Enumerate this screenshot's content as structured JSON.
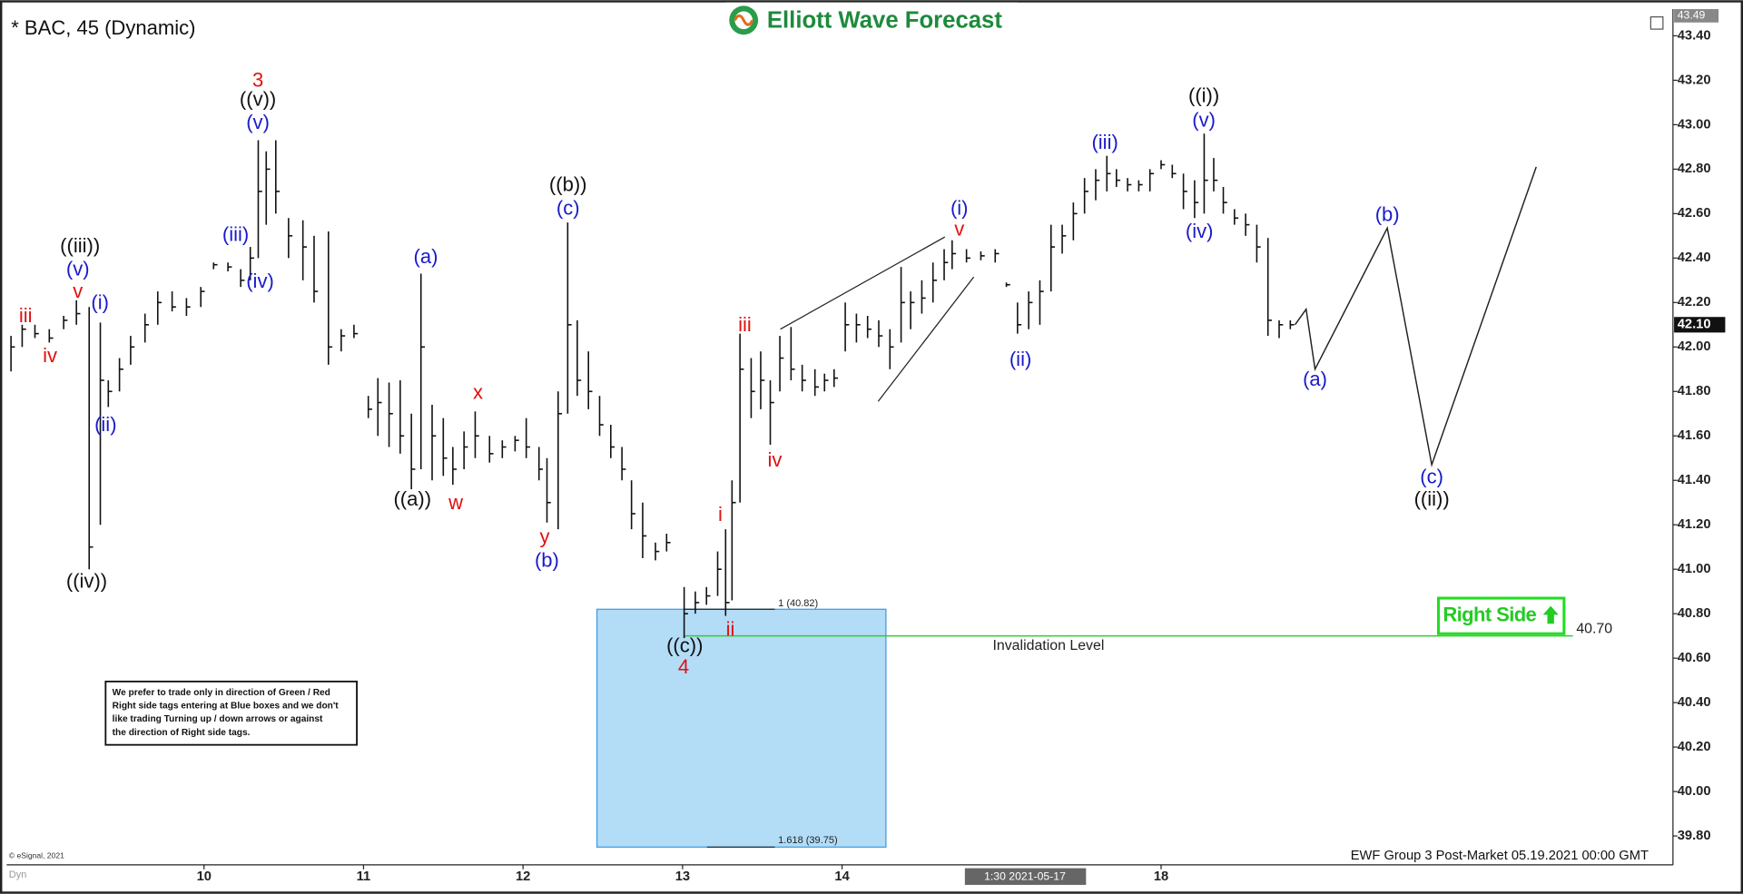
{
  "chart_data": {
    "type": "ohlc",
    "title": "* BAC, 45 (Dynamic)",
    "logo": "Elliott Wave Forecast",
    "footer": "EWF Group 3 Post-Market 05.19.2021 00:00 GMT",
    "source": "© eSignal, 2021",
    "mode_label": "Dyn",
    "cursor_label": "1:30 2021-05-17",
    "disclaimer": [
      "We prefer to trade only in direction of Green / Red",
      "Right side tags entering at Blue boxes and we don't",
      "like trading Turning up / down arrows or against",
      "the direction of Right side tags."
    ],
    "right_side_tag": "Right Side",
    "color": "#111111",
    "ylim": [
      39.685,
      43.52
    ],
    "yticks": [
      {
        "value": 39.8,
        "label": "39.80"
      },
      {
        "value": 40,
        "label": "40.00"
      },
      {
        "value": 40.2,
        "label": "40.20"
      },
      {
        "value": 40.4,
        "label": "40.40"
      },
      {
        "value": 40.6,
        "label": "40.60"
      },
      {
        "value": 40.8,
        "label": "40.80"
      },
      {
        "value": 41,
        "label": "41.00"
      },
      {
        "value": 41.2,
        "label": "41.20"
      },
      {
        "value": 41.4,
        "label": "41.40"
      },
      {
        "value": 41.6,
        "label": "41.60"
      },
      {
        "value": 41.8,
        "label": "41.80"
      },
      {
        "value": 42,
        "label": "42.00"
      },
      {
        "value": 42.2,
        "label": "42.20"
      },
      {
        "value": 42.4,
        "label": "42.40"
      },
      {
        "value": 42.6,
        "label": "42.60"
      },
      {
        "value": 42.8,
        "label": "42.80"
      },
      {
        "value": 43,
        "label": "43.00"
      },
      {
        "value": 43.2,
        "label": "43.20"
      },
      {
        "value": 43.4,
        "label": "43.40"
      }
    ],
    "xlim": [
      -0.279,
      10.209
    ],
    "xticks": [
      {
        "value": 1,
        "label": "10"
      },
      {
        "value": 2,
        "label": "11"
      },
      {
        "value": 3,
        "label": "12"
      },
      {
        "value": 4,
        "label": "13"
      },
      {
        "value": 5,
        "label": "14"
      },
      {
        "value": 7,
        "label": "18"
      }
    ],
    "last_price": {
      "value": 42.1,
      "label": "42.10"
    },
    "high_marker": {
      "value": 43.49,
      "label": "43.49"
    },
    "invalidation": {
      "value": 40.7,
      "label": "40.70",
      "text": "Invalidation Level",
      "color": "#33cc33"
    },
    "fib_box": {
      "top": 40.82,
      "bottom": 39.75,
      "top_label": "1 (40.82)",
      "bottom_label": "1.618 (39.75)",
      "color": "#b3dcf7"
    },
    "annotations": [
      {
        "text": "3",
        "color": "#e01010"
      },
      {
        "text": "((v))",
        "color": "#111111"
      },
      {
        "text": "(v)",
        "color": "#1a1acc"
      },
      {
        "text": "((iii))",
        "color": "#111111"
      },
      {
        "text": "(v)",
        "color": "#1a1acc"
      },
      {
        "text": "v",
        "color": "#e01010"
      },
      {
        "text": "(i)",
        "color": "#1a1acc"
      },
      {
        "text": "iii",
        "color": "#e01010"
      },
      {
        "text": "iv",
        "color": "#e01010"
      },
      {
        "text": "(ii)",
        "color": "#1a1acc"
      },
      {
        "text": "((iv))",
        "color": "#111111"
      },
      {
        "text": "(iii)",
        "color": "#1a1acc"
      },
      {
        "text": "(iv)",
        "color": "#1a1acc"
      },
      {
        "text": "(a)",
        "color": "#1a1acc"
      },
      {
        "text": "((a))",
        "color": "#111111"
      },
      {
        "text": "x",
        "color": "#e01010"
      },
      {
        "text": "w",
        "color": "#e01010"
      },
      {
        "text": "((b))",
        "color": "#111111"
      },
      {
        "text": "(c)",
        "color": "#1a1acc"
      },
      {
        "text": "y",
        "color": "#e01010"
      },
      {
        "text": "(b)",
        "color": "#1a1acc"
      },
      {
        "text": "iii",
        "color": "#e01010"
      },
      {
        "text": "iv",
        "color": "#e01010"
      },
      {
        "text": "i",
        "color": "#e01010"
      },
      {
        "text": "ii",
        "color": "#e01010"
      },
      {
        "text": "((c))",
        "color": "#111111"
      },
      {
        "text": "4",
        "color": "#e01010"
      },
      {
        "text": "(i)",
        "color": "#1a1acc"
      },
      {
        "text": "v",
        "color": "#e01010"
      },
      {
        "text": "(iii)",
        "color": "#1a1acc"
      },
      {
        "text": "((i))",
        "color": "#111111"
      },
      {
        "text": "(v)",
        "color": "#1a1acc"
      },
      {
        "text": "(iv)",
        "color": "#1a1acc"
      },
      {
        "text": "(ii)",
        "color": "#1a1acc"
      },
      {
        "text": "(a)",
        "color": "#1a1acc"
      },
      {
        "text": "(b)",
        "color": "#1a1acc"
      },
      {
        "text": "(c)",
        "color": "#1a1acc"
      },
      {
        "text": "((ii))",
        "color": "#111111"
      }
    ],
    "bars": [
      {
        "x": -0.21,
        "high": 42.05,
        "low": 41.89,
        "close": 42.0
      },
      {
        "x": -0.14,
        "high": 42.1,
        "low": 42.0,
        "close": 42.08
      },
      {
        "x": -0.06,
        "high": 42.1,
        "low": 42.04,
        "close": 42.06
      },
      {
        "x": 0.03,
        "high": 42.08,
        "low": 42.02,
        "close": 42.04
      },
      {
        "x": 0.12,
        "high": 42.14,
        "low": 42.08,
        "close": 42.12
      },
      {
        "x": 0.2,
        "high": 42.21,
        "low": 42.1,
        "close": 42.15
      },
      {
        "x": 0.28,
        "high": 42.18,
        "low": 41.0,
        "close": 41.1
      },
      {
        "x": 0.35,
        "high": 42.11,
        "low": 41.2,
        "close": 41.85
      },
      {
        "x": 0.4,
        "high": 41.85,
        "low": 41.73,
        "close": 41.8
      },
      {
        "x": 0.47,
        "high": 41.95,
        "low": 41.8,
        "close": 41.9
      },
      {
        "x": 0.54,
        "high": 42.05,
        "low": 41.92,
        "close": 42.0
      },
      {
        "x": 0.63,
        "high": 42.15,
        "low": 42.02,
        "close": 42.1
      },
      {
        "x": 0.71,
        "high": 42.25,
        "low": 42.1,
        "close": 42.2
      },
      {
        "x": 0.8,
        "high": 42.25,
        "low": 42.16,
        "close": 42.18
      },
      {
        "x": 0.89,
        "high": 42.22,
        "low": 42.14,
        "close": 42.18
      },
      {
        "x": 0.98,
        "high": 42.27,
        "low": 42.18,
        "close": 42.25
      },
      {
        "x": 1.06,
        "high": 42.38,
        "low": 42.35,
        "close": 42.37
      },
      {
        "x": 1.15,
        "high": 42.38,
        "low": 42.34,
        "close": 42.36
      },
      {
        "x": 1.23,
        "high": 42.35,
        "low": 42.27,
        "close": 42.3
      },
      {
        "x": 1.29,
        "high": 42.45,
        "low": 42.3,
        "close": 42.4
      },
      {
        "x": 1.34,
        "high": 42.93,
        "low": 42.4,
        "close": 42.7
      },
      {
        "x": 1.39,
        "high": 42.88,
        "low": 42.55,
        "close": 42.8
      },
      {
        "x": 1.45,
        "high": 42.93,
        "low": 42.6,
        "close": 42.7
      },
      {
        "x": 1.53,
        "high": 42.58,
        "low": 42.4,
        "close": 42.5
      },
      {
        "x": 1.62,
        "high": 42.57,
        "low": 42.3,
        "close": 42.45
      },
      {
        "x": 1.69,
        "high": 42.5,
        "low": 42.2,
        "close": 42.25
      },
      {
        "x": 1.78,
        "high": 42.52,
        "low": 41.92,
        "close": 42.0
      },
      {
        "x": 1.86,
        "high": 42.08,
        "low": 41.98,
        "close": 42.05
      },
      {
        "x": 1.94,
        "high": 42.1,
        "low": 42.04,
        "close": 42.06
      },
      {
        "x": 2.03,
        "high": 41.78,
        "low": 41.68,
        "close": 41.72
      },
      {
        "x": 2.09,
        "high": 41.86,
        "low": 41.6,
        "close": 41.75
      },
      {
        "x": 2.16,
        "high": 41.84,
        "low": 41.55,
        "close": 41.7
      },
      {
        "x": 2.23,
        "high": 41.85,
        "low": 41.52,
        "close": 41.6
      },
      {
        "x": 2.3,
        "high": 41.7,
        "low": 41.36,
        "close": 41.45
      },
      {
        "x": 2.36,
        "high": 42.33,
        "low": 41.45,
        "close": 42.0
      },
      {
        "x": 2.43,
        "high": 41.74,
        "low": 41.4,
        "close": 41.6
      },
      {
        "x": 2.5,
        "high": 41.68,
        "low": 41.42,
        "close": 41.5
      },
      {
        "x": 2.56,
        "high": 41.55,
        "low": 41.38,
        "close": 41.45
      },
      {
        "x": 2.63,
        "high": 41.62,
        "low": 41.45,
        "close": 41.55
      },
      {
        "x": 2.7,
        "high": 41.71,
        "low": 41.5,
        "close": 41.6
      },
      {
        "x": 2.79,
        "high": 41.6,
        "low": 41.48,
        "close": 41.52
      },
      {
        "x": 2.87,
        "high": 41.58,
        "low": 41.5,
        "close": 41.55
      },
      {
        "x": 2.95,
        "high": 41.6,
        "low": 41.53,
        "close": 41.58
      },
      {
        "x": 3.02,
        "high": 41.68,
        "low": 41.5,
        "close": 41.55
      },
      {
        "x": 3.1,
        "high": 41.55,
        "low": 41.4,
        "close": 41.45
      },
      {
        "x": 3.15,
        "high": 41.5,
        "low": 41.21,
        "close": 41.3
      },
      {
        "x": 3.22,
        "high": 41.8,
        "low": 41.18,
        "close": 41.7
      },
      {
        "x": 3.28,
        "high": 42.56,
        "low": 41.7,
        "close": 42.1
      },
      {
        "x": 3.34,
        "high": 42.12,
        "low": 41.78,
        "close": 41.85
      },
      {
        "x": 3.41,
        "high": 41.98,
        "low": 41.72,
        "close": 41.8
      },
      {
        "x": 3.48,
        "high": 41.78,
        "low": 41.6,
        "close": 41.65
      },
      {
        "x": 3.55,
        "high": 41.65,
        "low": 41.5,
        "close": 41.55
      },
      {
        "x": 3.62,
        "high": 41.55,
        "low": 41.4,
        "close": 41.45
      },
      {
        "x": 3.68,
        "high": 41.4,
        "low": 41.18,
        "close": 41.25
      },
      {
        "x": 3.75,
        "high": 41.3,
        "low": 41.05,
        "close": 41.15
      },
      {
        "x": 3.83,
        "high": 41.12,
        "low": 41.04,
        "close": 41.08
      },
      {
        "x": 3.9,
        "high": 41.16,
        "low": 41.08,
        "close": 41.12
      },
      {
        "x": 4.01,
        "high": 40.92,
        "low": 40.69,
        "close": 40.8
      },
      {
        "x": 4.08,
        "high": 40.9,
        "low": 40.8,
        "close": 40.85
      },
      {
        "x": 4.15,
        "high": 40.92,
        "low": 40.84,
        "close": 40.88
      },
      {
        "x": 4.22,
        "high": 41.08,
        "low": 40.88,
        "close": 41.0
      },
      {
        "x": 4.27,
        "high": 41.18,
        "low": 40.79,
        "close": 40.85
      },
      {
        "x": 4.31,
        "high": 41.4,
        "low": 40.86,
        "close": 41.3
      },
      {
        "x": 4.36,
        "high": 42.06,
        "low": 41.3,
        "close": 41.9
      },
      {
        "x": 4.43,
        "high": 41.95,
        "low": 41.68,
        "close": 41.8
      },
      {
        "x": 4.49,
        "high": 41.98,
        "low": 41.72,
        "close": 41.85
      },
      {
        "x": 4.55,
        "high": 41.85,
        "low": 41.56,
        "close": 41.75
      },
      {
        "x": 4.61,
        "high": 42.05,
        "low": 41.8,
        "close": 41.95
      },
      {
        "x": 4.68,
        "high": 42.09,
        "low": 41.85,
        "close": 41.9
      },
      {
        "x": 4.75,
        "high": 41.92,
        "low": 41.8,
        "close": 41.85
      },
      {
        "x": 4.83,
        "high": 41.9,
        "low": 41.78,
        "close": 41.82
      },
      {
        "x": 4.89,
        "high": 41.88,
        "low": 41.8,
        "close": 41.85
      },
      {
        "x": 4.95,
        "high": 41.9,
        "low": 41.82,
        "close": 41.86
      },
      {
        "x": 5.02,
        "high": 42.2,
        "low": 41.98,
        "close": 42.1
      },
      {
        "x": 5.09,
        "high": 42.15,
        "low": 42.02,
        "close": 42.1
      },
      {
        "x": 5.16,
        "high": 42.14,
        "low": 42.04,
        "close": 42.08
      },
      {
        "x": 5.23,
        "high": 42.12,
        "low": 42.0,
        "close": 42.05
      },
      {
        "x": 5.3,
        "high": 42.08,
        "low": 41.9,
        "close": 42.0
      },
      {
        "x": 5.37,
        "high": 42.36,
        "low": 42.02,
        "close": 42.2
      },
      {
        "x": 5.43,
        "high": 42.25,
        "low": 42.08,
        "close": 42.2
      },
      {
        "x": 5.5,
        "high": 42.3,
        "low": 42.15,
        "close": 42.22
      },
      {
        "x": 5.57,
        "high": 42.38,
        "low": 42.2,
        "close": 42.3
      },
      {
        "x": 5.64,
        "high": 42.44,
        "low": 42.3,
        "close": 42.38
      },
      {
        "x": 5.69,
        "high": 42.48,
        "low": 42.35,
        "close": 42.42
      },
      {
        "x": 5.78,
        "high": 42.44,
        "low": 42.38,
        "close": 42.4
      },
      {
        "x": 5.87,
        "high": 42.43,
        "low": 42.39,
        "close": 42.41
      },
      {
        "x": 5.96,
        "high": 42.44,
        "low": 42.38,
        "close": 42.42
      },
      {
        "x": 6.03,
        "high": 42.29,
        "low": 42.27,
        "close": 42.28
      },
      {
        "x": 6.1,
        "high": 42.2,
        "low": 42.06,
        "close": 42.1
      },
      {
        "x": 6.17,
        "high": 42.25,
        "low": 42.08,
        "close": 42.2
      },
      {
        "x": 6.24,
        "high": 42.3,
        "low": 42.1,
        "close": 42.25
      },
      {
        "x": 6.31,
        "high": 42.55,
        "low": 42.25,
        "close": 42.45
      },
      {
        "x": 6.38,
        "high": 42.55,
        "low": 42.42,
        "close": 42.5
      },
      {
        "x": 6.45,
        "high": 42.65,
        "low": 42.48,
        "close": 42.6
      },
      {
        "x": 6.52,
        "high": 42.76,
        "low": 42.6,
        "close": 42.7
      },
      {
        "x": 6.59,
        "high": 42.8,
        "low": 42.66,
        "close": 42.75
      },
      {
        "x": 6.66,
        "high": 42.86,
        "low": 42.7,
        "close": 42.78
      },
      {
        "x": 6.72,
        "high": 42.8,
        "low": 42.72,
        "close": 42.75
      },
      {
        "x": 6.79,
        "high": 42.76,
        "low": 42.7,
        "close": 42.73
      },
      {
        "x": 6.86,
        "high": 42.75,
        "low": 42.7,
        "close": 42.73
      },
      {
        "x": 6.93,
        "high": 42.8,
        "low": 42.7,
        "close": 42.78
      },
      {
        "x": 7.0,
        "high": 42.84,
        "low": 42.8,
        "close": 42.82
      },
      {
        "x": 7.07,
        "high": 42.82,
        "low": 42.76,
        "close": 42.78
      },
      {
        "x": 7.14,
        "high": 42.78,
        "low": 42.62,
        "close": 42.7
      },
      {
        "x": 7.21,
        "high": 42.75,
        "low": 42.58,
        "close": 42.65
      },
      {
        "x": 7.27,
        "high": 42.96,
        "low": 42.6,
        "close": 42.75
      },
      {
        "x": 7.33,
        "high": 42.85,
        "low": 42.7,
        "close": 42.75
      },
      {
        "x": 7.39,
        "high": 42.72,
        "low": 42.6,
        "close": 42.65
      },
      {
        "x": 7.46,
        "high": 42.62,
        "low": 42.55,
        "close": 42.58
      },
      {
        "x": 7.53,
        "high": 42.6,
        "low": 42.5,
        "close": 42.55
      },
      {
        "x": 7.6,
        "high": 42.55,
        "low": 42.38,
        "close": 42.45
      },
      {
        "x": 7.67,
        "high": 42.49,
        "low": 42.05,
        "close": 42.12
      },
      {
        "x": 7.74,
        "high": 42.12,
        "low": 42.04,
        "close": 42.1
      },
      {
        "x": 7.81,
        "high": 42.12,
        "low": 42.08,
        "close": 42.1
      }
    ]
  }
}
